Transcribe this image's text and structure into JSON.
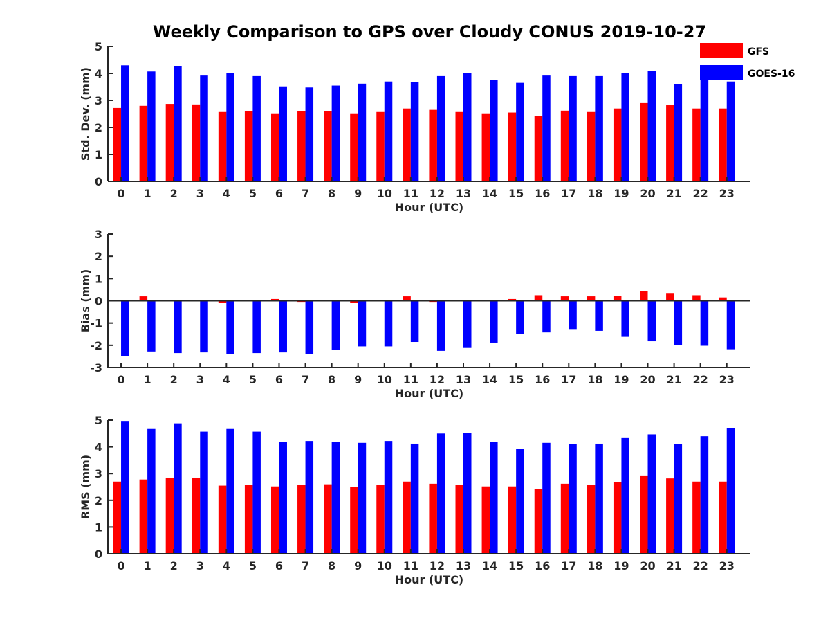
{
  "title": "Weekly Comparison to GPS over Cloudy CONUS 2019-10-27",
  "legend": {
    "placement": "top-right",
    "items": [
      {
        "name": "GFS",
        "color": "#ff0000"
      },
      {
        "name": "GOES-16",
        "color": "#0000ff"
      }
    ]
  },
  "chart_data": [
    {
      "type": "bar",
      "categories": [
        "0",
        "1",
        "2",
        "3",
        "4",
        "5",
        "6",
        "7",
        "8",
        "9",
        "10",
        "11",
        "12",
        "13",
        "14",
        "15",
        "16",
        "17",
        "18",
        "19",
        "20",
        "21",
        "22",
        "23"
      ],
      "xlabel": "Hour (UTC)",
      "ylabel": "Std. Dev. (mm)",
      "ylim": [
        0,
        5
      ],
      "yticks": [
        "0",
        "1",
        "2",
        "3",
        "4",
        "5"
      ],
      "series": [
        {
          "name": "GFS",
          "color": "#ff0000",
          "values": [
            2.72,
            2.8,
            2.87,
            2.85,
            2.57,
            2.6,
            2.52,
            2.6,
            2.6,
            2.52,
            2.57,
            2.7,
            2.65,
            2.57,
            2.52,
            2.55,
            2.42,
            2.62,
            2.57,
            2.7,
            2.9,
            2.82,
            2.7,
            2.7
          ]
        },
        {
          "name": "GOES-16",
          "color": "#0000ff",
          "values": [
            4.3,
            4.07,
            4.28,
            3.92,
            4.0,
            3.9,
            3.52,
            3.48,
            3.55,
            3.62,
            3.7,
            3.67,
            3.9,
            4.0,
            3.75,
            3.65,
            3.92,
            3.9,
            3.9,
            4.02,
            4.1,
            3.6,
            3.9,
            3.7
          ]
        }
      ]
    },
    {
      "type": "bar",
      "categories": [
        "0",
        "1",
        "2",
        "3",
        "4",
        "5",
        "6",
        "7",
        "8",
        "9",
        "10",
        "11",
        "12",
        "13",
        "14",
        "15",
        "16",
        "17",
        "18",
        "19",
        "20",
        "21",
        "22",
        "23"
      ],
      "xlabel": "Hour (UTC)",
      "ylabel": "Bias (mm)",
      "ylim": [
        -3,
        3
      ],
      "yticks": [
        "-3",
        "-2",
        "-1",
        "0",
        "1",
        "2",
        "3"
      ],
      "series": [
        {
          "name": "GFS",
          "color": "#ff0000",
          "values": [
            0.0,
            0.2,
            0.02,
            0.0,
            -0.1,
            0.0,
            0.08,
            -0.05,
            0.02,
            -0.1,
            0.0,
            0.2,
            -0.05,
            0.0,
            0.02,
            0.08,
            0.25,
            0.2,
            0.2,
            0.23,
            0.45,
            0.35,
            0.25,
            0.15
          ]
        },
        {
          "name": "GOES-16",
          "color": "#0000ff",
          "values": [
            -2.48,
            -2.28,
            -2.35,
            -2.32,
            -2.4,
            -2.35,
            -2.32,
            -2.38,
            -2.2,
            -2.05,
            -2.05,
            -1.85,
            -2.25,
            -2.12,
            -1.88,
            -1.48,
            -1.42,
            -1.3,
            -1.35,
            -1.62,
            -1.82,
            -2.0,
            -2.02,
            -2.18
          ]
        }
      ]
    },
    {
      "type": "bar",
      "categories": [
        "0",
        "1",
        "2",
        "3",
        "4",
        "5",
        "6",
        "7",
        "8",
        "9",
        "10",
        "11",
        "12",
        "13",
        "14",
        "15",
        "16",
        "17",
        "18",
        "19",
        "20",
        "21",
        "22",
        "23"
      ],
      "xlabel": "Hour (UTC)",
      "ylabel": "RMS (mm)",
      "ylim": [
        0,
        5
      ],
      "yticks": [
        "0",
        "1",
        "2",
        "3",
        "4",
        "5"
      ],
      "series": [
        {
          "name": "GFS",
          "color": "#ff0000",
          "values": [
            2.7,
            2.78,
            2.85,
            2.85,
            2.55,
            2.58,
            2.52,
            2.58,
            2.6,
            2.5,
            2.58,
            2.7,
            2.62,
            2.58,
            2.52,
            2.52,
            2.42,
            2.62,
            2.58,
            2.68,
            2.93,
            2.82,
            2.7,
            2.7
          ]
        },
        {
          "name": "GOES-16",
          "color": "#0000ff",
          "values": [
            4.97,
            4.67,
            4.88,
            4.57,
            4.67,
            4.57,
            4.18,
            4.22,
            4.18,
            4.15,
            4.22,
            4.12,
            4.5,
            4.53,
            4.18,
            3.92,
            4.15,
            4.1,
            4.12,
            4.33,
            4.47,
            4.1,
            4.4,
            4.7
          ]
        }
      ]
    }
  ]
}
